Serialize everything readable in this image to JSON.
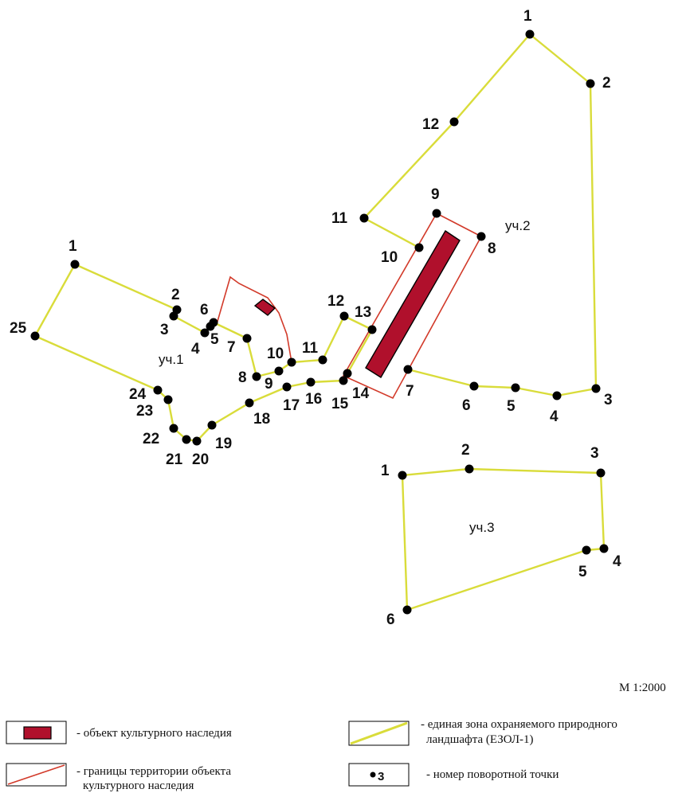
{
  "zones": [
    {
      "label": "уч.1",
      "points": [
        {
          "n": "1"
        },
        {
          "n": "2"
        },
        {
          "n": "3"
        },
        {
          "n": "4"
        },
        {
          "n": "5"
        },
        {
          "n": "6"
        },
        {
          "n": "7"
        },
        {
          "n": "8"
        },
        {
          "n": "9"
        },
        {
          "n": "10"
        },
        {
          "n": "11"
        },
        {
          "n": "12"
        },
        {
          "n": "13"
        },
        {
          "n": "14"
        },
        {
          "n": "15"
        },
        {
          "n": "16"
        },
        {
          "n": "17"
        },
        {
          "n": "18"
        },
        {
          "n": "19"
        },
        {
          "n": "20"
        },
        {
          "n": "21"
        },
        {
          "n": "22"
        },
        {
          "n": "23"
        },
        {
          "n": "24"
        },
        {
          "n": "25"
        }
      ]
    },
    {
      "label": "уч.2",
      "points": [
        {
          "n": "1"
        },
        {
          "n": "2"
        },
        {
          "n": "3"
        },
        {
          "n": "4"
        },
        {
          "n": "5"
        },
        {
          "n": "6"
        },
        {
          "n": "7"
        },
        {
          "n": "8"
        },
        {
          "n": "9"
        },
        {
          "n": "10"
        },
        {
          "n": "11"
        },
        {
          "n": "12"
        }
      ]
    },
    {
      "label": "уч.3",
      "points": [
        {
          "n": "1"
        },
        {
          "n": "2"
        },
        {
          "n": "3"
        },
        {
          "n": "4"
        },
        {
          "n": "5"
        },
        {
          "n": "6"
        }
      ]
    }
  ],
  "scale": "М 1:2000",
  "colors": {
    "zone_line": "#d9dc3a",
    "boundary_line": "#d23a2a",
    "heritage_fill": "#b0102c",
    "point": "#000000"
  },
  "legend": {
    "heritage_object": "- объект культурного наследия",
    "heritage_boundary_line1": "- границы территории объекта",
    "heritage_boundary_line2": "культурного наследия",
    "zone_line1": "- единая зона охраняемого природного",
    "zone_line2": "ландшафта (ЕЗОЛ-1)",
    "turning_point": "- номер поворотной точки",
    "turning_point_sample": "3"
  }
}
